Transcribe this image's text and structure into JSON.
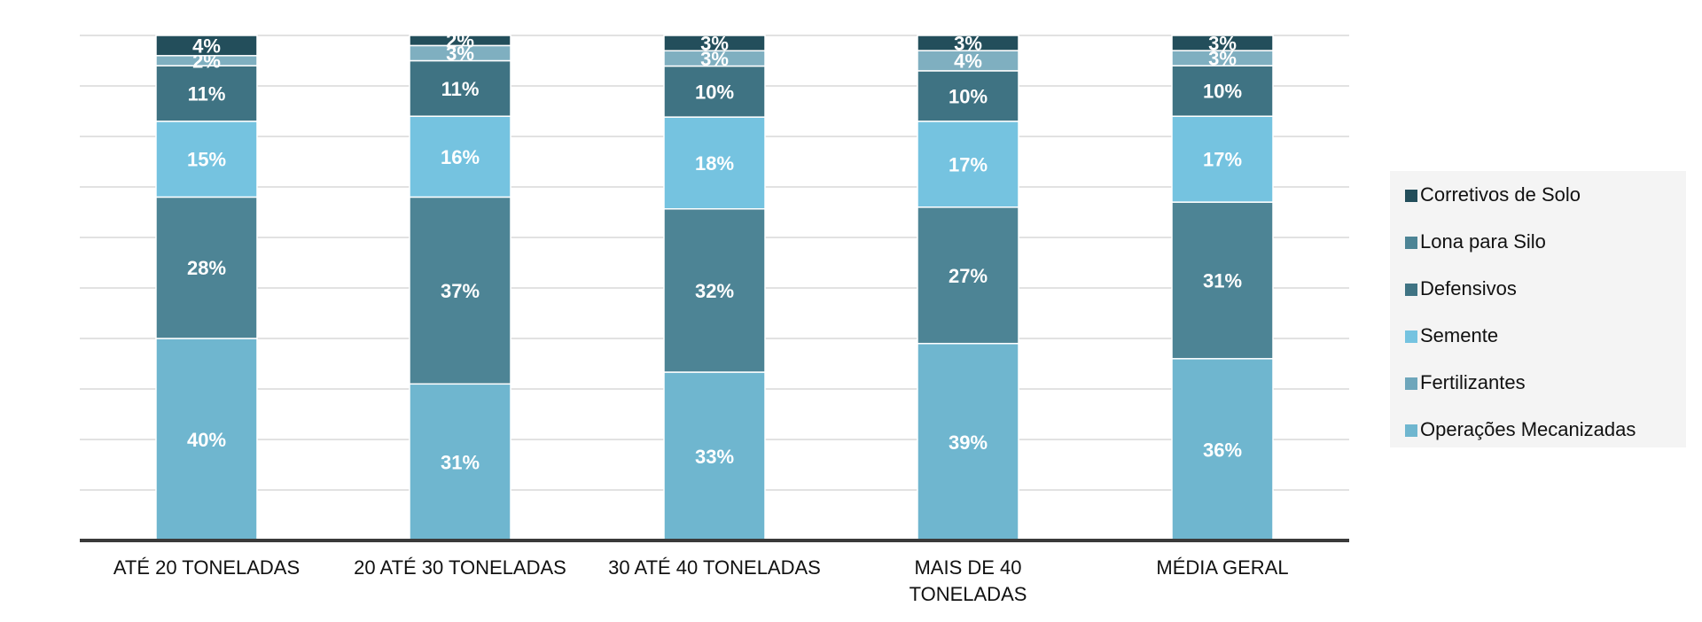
{
  "chart_data": {
    "type": "bar",
    "stacked": true,
    "percent": true,
    "categories": [
      [
        "ATÉ 20 TONELADAS"
      ],
      [
        "20 ATÉ 30 TONELADAS"
      ],
      [
        "30 ATÉ 40 TONELADAS"
      ],
      [
        "MAIS DE 40",
        "TONELADAS"
      ],
      [
        "MÉDIA GERAL"
      ]
    ],
    "series": [
      {
        "name": "Operações Mecanizadas",
        "color": "#6fb6cf",
        "values": [
          40,
          31,
          33,
          39,
          36
        ]
      },
      {
        "name": "Fertilizantes",
        "color": "#6ea6bb",
        "values": [
          0,
          0,
          0,
          0,
          0
        ]
      },
      {
        "name": "Defensivos",
        "color": "#4d8495",
        "values": [
          28,
          37,
          32,
          27,
          31
        ]
      },
      {
        "name": "Semente",
        "color": "#75c3e0",
        "values": [
          15,
          16,
          18,
          17,
          17
        ]
      },
      {
        "name": "Defensivos (2)",
        "color": "#3f7383",
        "values": [
          11,
          11,
          10,
          10,
          10
        ]
      },
      {
        "name": "Fertilizantes (2)",
        "color": "#7fafc0",
        "values": [
          2,
          3,
          3,
          4,
          3
        ]
      },
      {
        "name": "Corretivos de Solo",
        "color": "#234e5b",
        "values": [
          4,
          2,
          3,
          3,
          3
        ]
      }
    ],
    "legend": {
      "position": "right",
      "entries": [
        {
          "label": "Corretivos de Solo",
          "color": "#234e5b"
        },
        {
          "label": "Lona para Silo",
          "color": "#4d8495"
        },
        {
          "label": "Defensivos",
          "color": "#3f7383"
        },
        {
          "label": "Semente",
          "color": "#75c3e0"
        },
        {
          "label": "Fertilizantes",
          "color": "#6ea6bb"
        },
        {
          "label": "Operações Mecanizadas",
          "color": "#6fb6cf"
        }
      ]
    },
    "ylim": [
      0,
      100
    ],
    "grid": true
  }
}
